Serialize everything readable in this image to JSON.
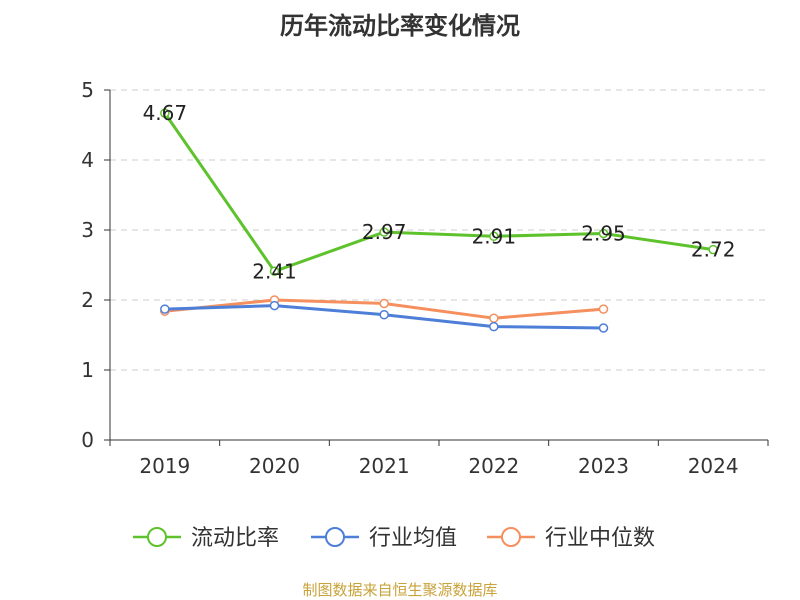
{
  "chart_data": {
    "type": "line",
    "title": "历年流动比率变化情况",
    "categories": [
      "2019",
      "2020",
      "2021",
      "2022",
      "2023",
      "2024"
    ],
    "ylim": [
      0,
      5
    ],
    "yticks": [
      "0",
      "1",
      "2",
      "3",
      "4",
      "5"
    ],
    "grid": true,
    "legend_position": "bottom",
    "series": [
      {
        "name": "流动比率",
        "color": "#5ec22c",
        "values": [
          4.67,
          2.41,
          2.97,
          2.91,
          2.95,
          2.72
        ],
        "labels": [
          "4.67",
          "2.41",
          "2.97",
          "2.91",
          "2.95",
          "2.72"
        ]
      },
      {
        "name": "行业均值",
        "color": "#4e7fd8",
        "values": [
          1.87,
          1.92,
          1.79,
          1.62,
          1.6,
          null
        ]
      },
      {
        "name": "行业中位数",
        "color": "#f58f5e",
        "values": [
          1.84,
          2.0,
          1.95,
          1.74,
          1.87,
          null
        ]
      }
    ]
  },
  "source_text": "制图数据来自恒生聚源数据库"
}
